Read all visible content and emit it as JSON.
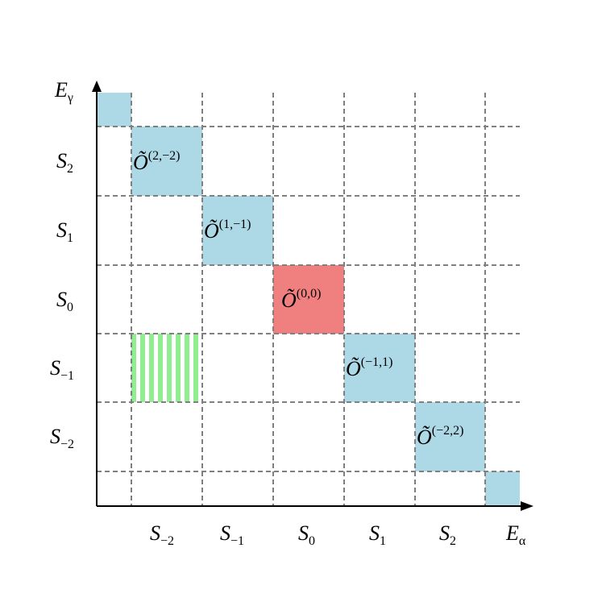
{
  "axis_labels": {
    "vertical": {
      "base": "E",
      "sub": "γ"
    },
    "horizontal": {
      "base": "E",
      "sub": "α"
    }
  },
  "row_labels": [
    {
      "base": "S",
      "sub": "2"
    },
    {
      "base": "S",
      "sub": "1"
    },
    {
      "base": "S",
      "sub": "0"
    },
    {
      "base": "S",
      "sub": "−1"
    },
    {
      "base": "S",
      "sub": "−2"
    }
  ],
  "column_labels": [
    {
      "base": "S",
      "sub": "−2"
    },
    {
      "base": "S",
      "sub": "−1"
    },
    {
      "base": "S",
      "sub": "0"
    },
    {
      "base": "S",
      "sub": "1"
    },
    {
      "base": "S",
      "sub": "2"
    }
  ],
  "blocks": [
    {
      "base": "Õ",
      "sup": "(2,−2)"
    },
    {
      "base": "Õ",
      "sup": "(1,−1)"
    },
    {
      "base": "Õ",
      "sup": "(0,0)"
    },
    {
      "base": "Õ",
      "sup": "(−1,1)"
    },
    {
      "base": "Õ",
      "sup": "(−2,2)"
    }
  ]
}
